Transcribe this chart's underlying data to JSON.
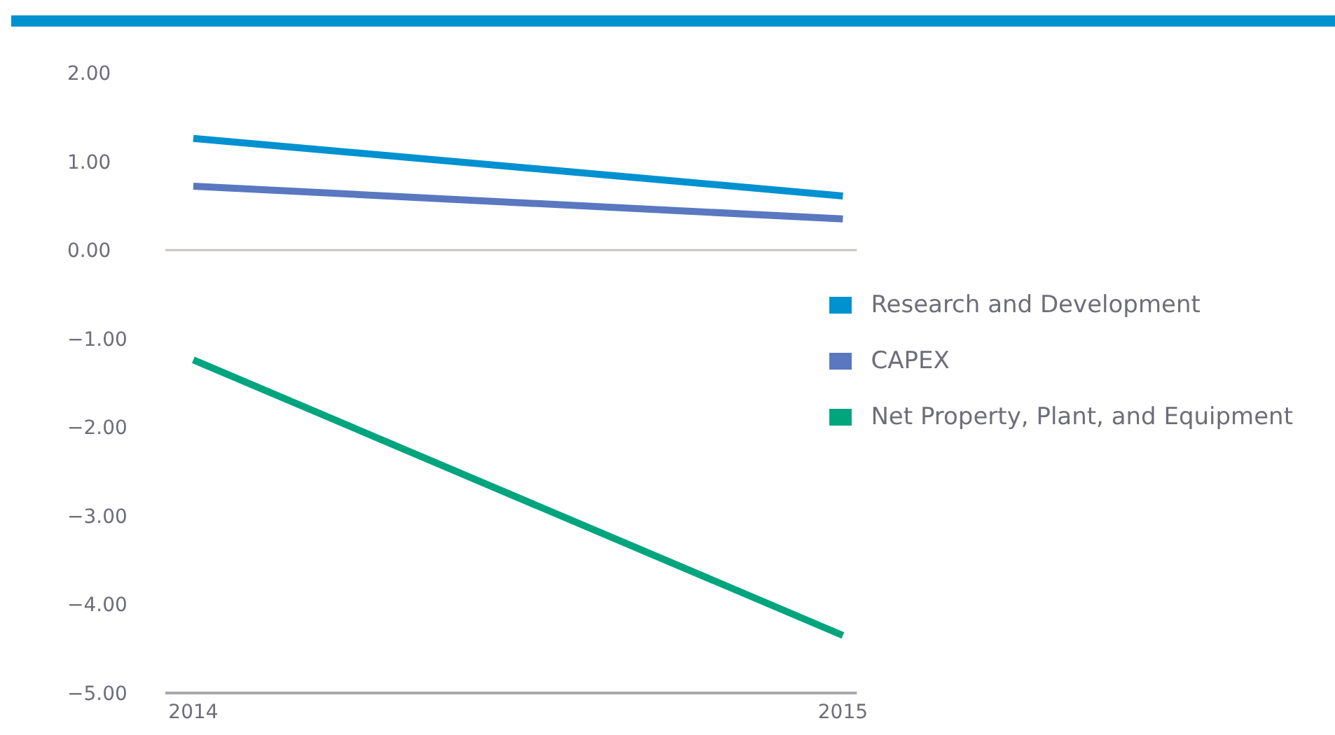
{
  "chart_data": {
    "type": "line",
    "categories": [
      "2014",
      "2015"
    ],
    "series": [
      {
        "name": "Research and Development",
        "color": "#0091d0",
        "values": [
          1.26,
          0.61
        ]
      },
      {
        "name": "CAPEX",
        "color": "#5a78c0",
        "values": [
          0.72,
          0.35
        ]
      },
      {
        "name": "Net Property, Plant, and Equipment",
        "color": "#00a57e",
        "values": [
          -1.24,
          -4.35
        ]
      }
    ],
    "ylim": [
      -5,
      2
    ],
    "yticks": [
      {
        "value": 2,
        "label": "2.00"
      },
      {
        "value": 1,
        "label": "1.00"
      },
      {
        "value": 0,
        "label": "0.00"
      },
      {
        "value": -1,
        "label": "−1.00"
      },
      {
        "value": -2,
        "label": "−2.00"
      },
      {
        "value": -3,
        "label": "−3.00"
      },
      {
        "value": -4,
        "label": "−4.00"
      },
      {
        "value": -5,
        "label": "−5.00"
      }
    ],
    "ref_lines": [
      {
        "axis": "y",
        "value": 0,
        "color": "#c8c4c0"
      }
    ],
    "grid": false,
    "legend": "right",
    "marker": "none",
    "line_style": "solid"
  }
}
